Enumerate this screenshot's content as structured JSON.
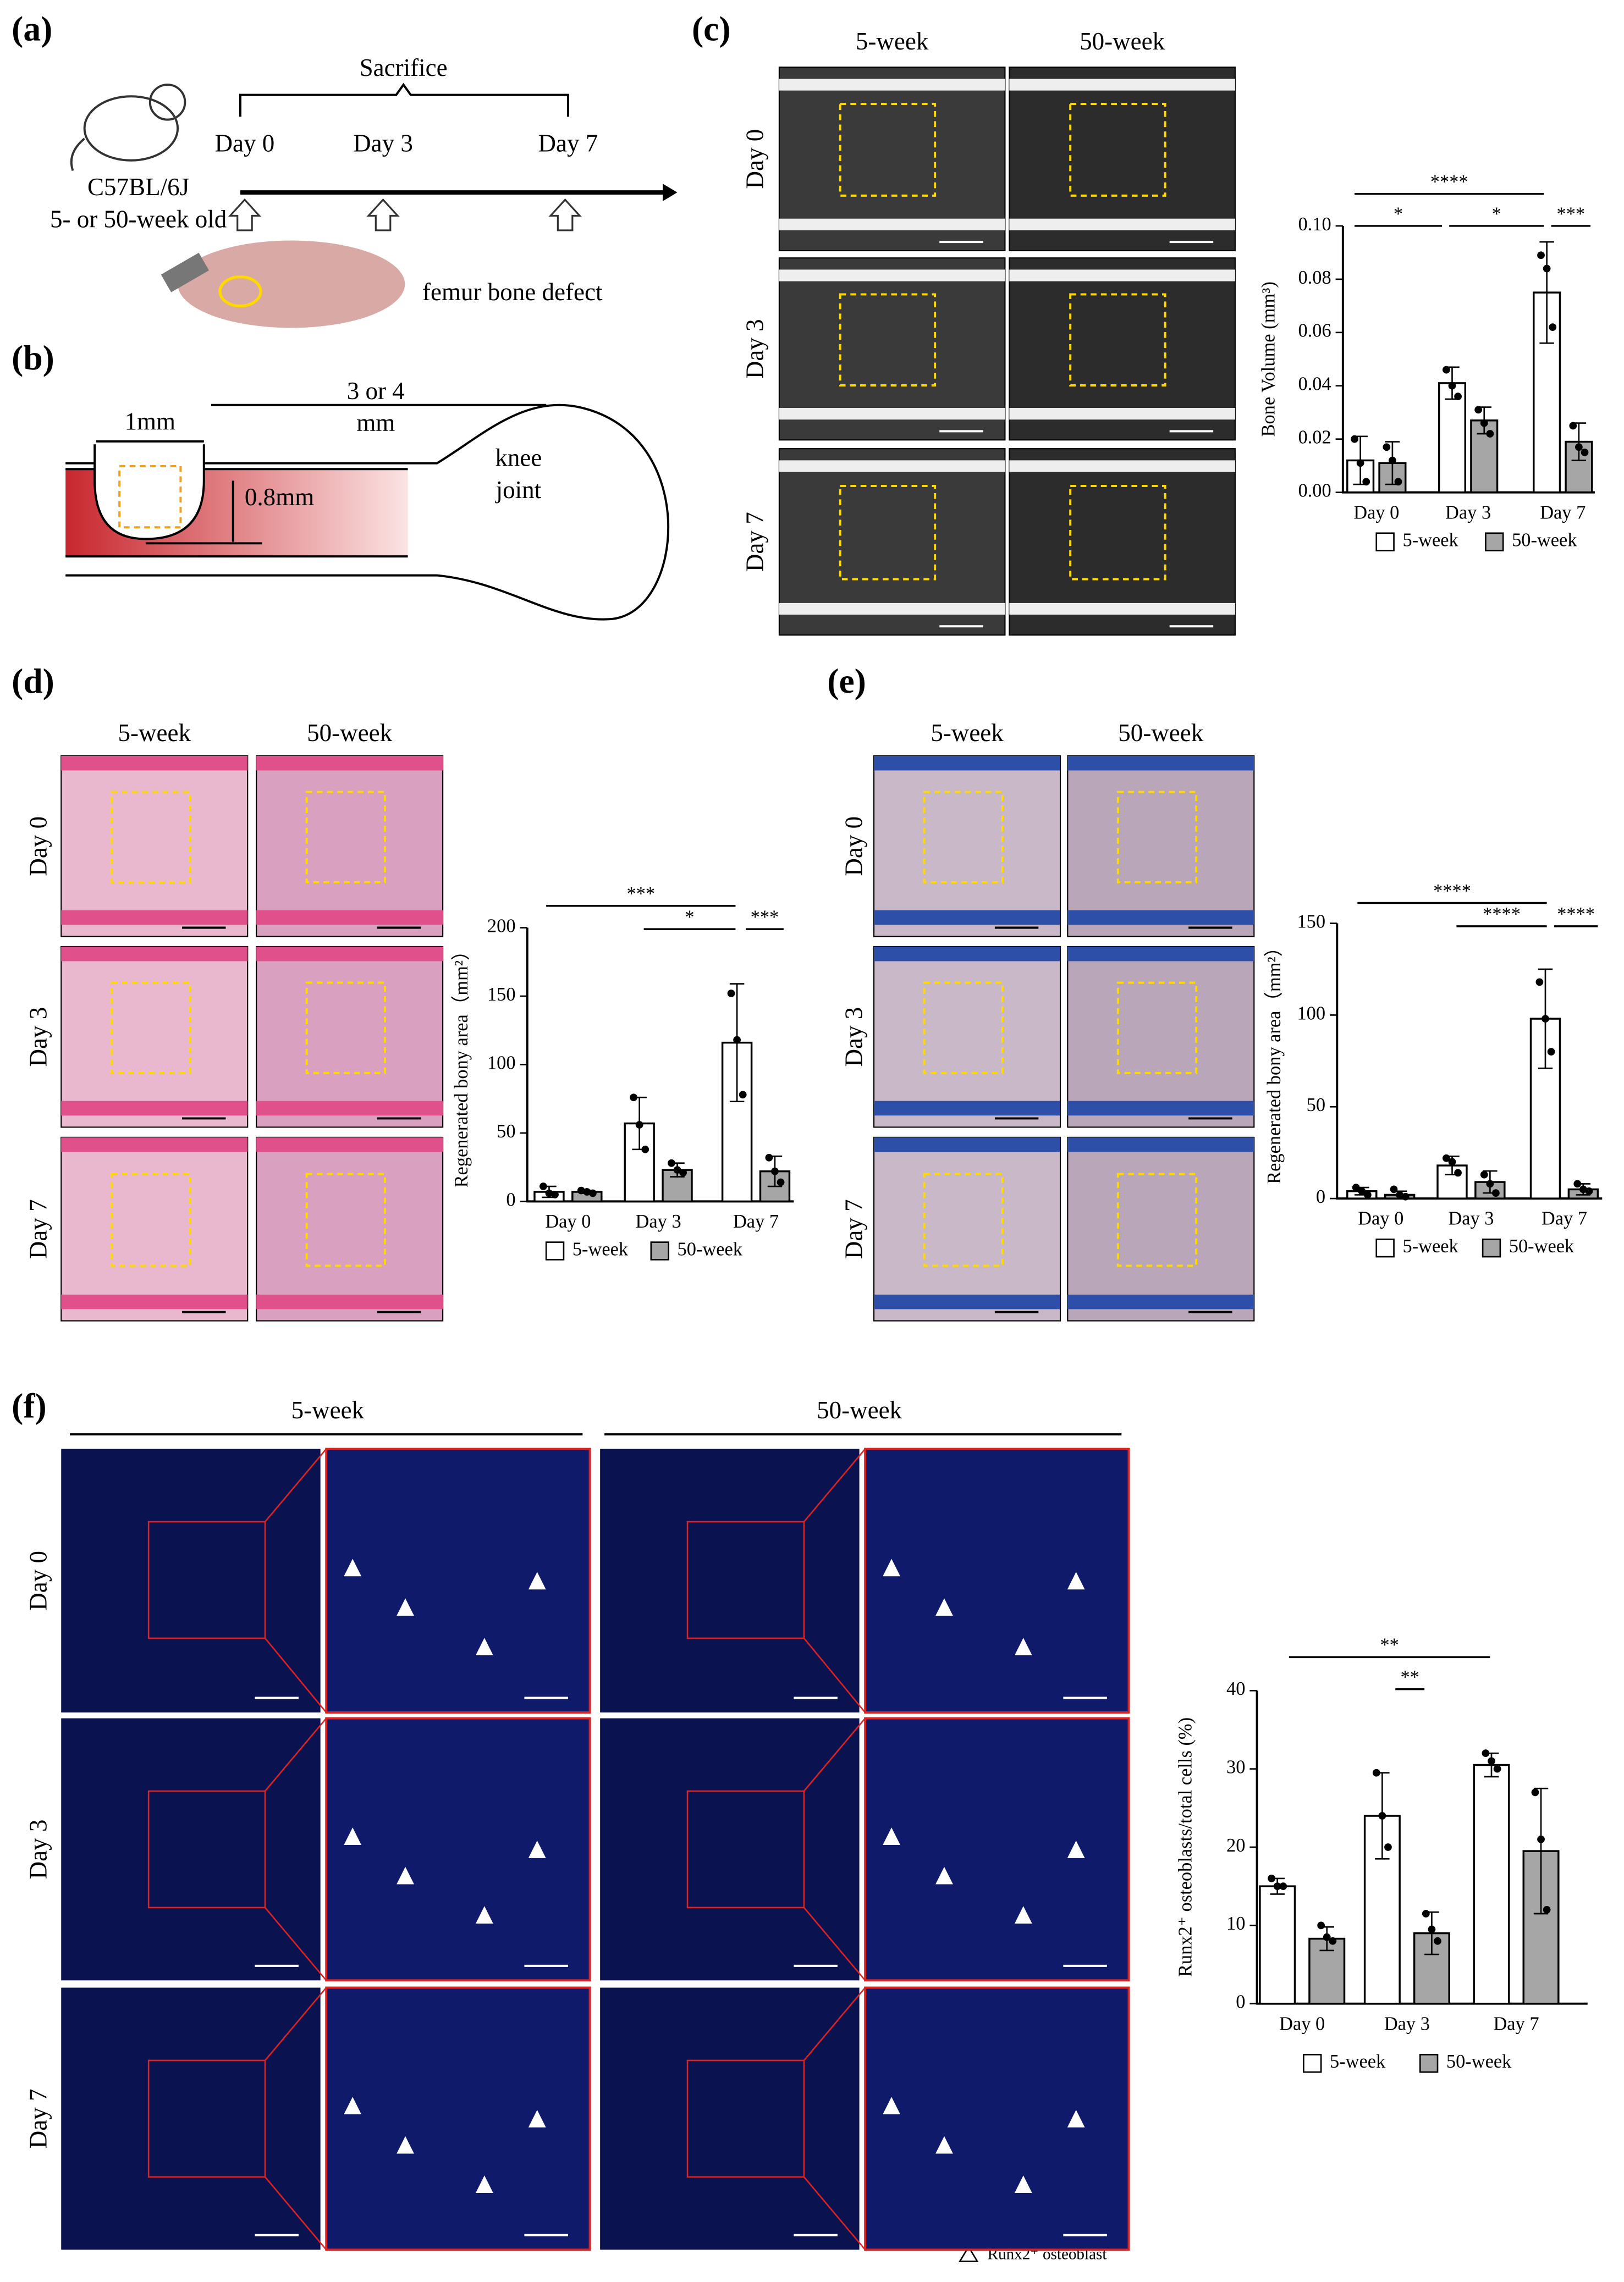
{
  "panels": {
    "a": {
      "label": "(a)",
      "sacrifice": "Sacrifice",
      "days": [
        "Day 0",
        "Day 3",
        "Day 7"
      ],
      "strain": "C57BL/6J",
      "age": "5- or 50-week old",
      "defect": "femur bone defect"
    },
    "b": {
      "label": "(b)",
      "distance": "3 or 4",
      "distance_unit": "mm",
      "width": "1mm",
      "depth": "0.8mm",
      "knee": "knee",
      "joint": "joint"
    },
    "c": {
      "label": "(c)",
      "columns": [
        "5-week",
        "50-week"
      ],
      "rows": [
        "Day 0",
        "Day 3",
        "Day 7"
      ]
    },
    "d": {
      "label": "(d)",
      "columns": [
        "5-week",
        "50-week"
      ],
      "rows": [
        "Day 0",
        "Day 3",
        "Day 7"
      ]
    },
    "e": {
      "label": "(e)",
      "columns": [
        "5-week",
        "50-week"
      ],
      "rows": [
        "Day 0",
        "Day 3",
        "Day 7"
      ]
    },
    "f": {
      "label": "(f)",
      "columns": [
        "5-week",
        "50-week"
      ],
      "rows": [
        "Day 0",
        "Day 3",
        "Day 7"
      ],
      "marker_legend": "Runx2⁺ osteoblast"
    }
  },
  "chart_data": [
    {
      "type": "bar",
      "y_label": "Bone Volume (mm³)",
      "categories": [
        "Day 0",
        "Day 3",
        "Day 7"
      ],
      "series": [
        {
          "name": "5-week",
          "color": "#ffffff",
          "values": [
            0.012,
            0.041,
            0.075
          ],
          "errors": [
            0.009,
            0.006,
            0.019
          ],
          "points": [
            [
              0.02,
              0.011,
              0.004
            ],
            [
              0.046,
              0.04,
              0.036
            ],
            [
              0.089,
              0.084,
              0.062
            ]
          ]
        },
        {
          "name": "50-week",
          "color": "#a6a6a6",
          "values": [
            0.011,
            0.027,
            0.019
          ],
          "errors": [
            0.008,
            0.005,
            0.007
          ],
          "points": [
            [
              0.017,
              0.012,
              0.004
            ],
            [
              0.031,
              0.026,
              0.022
            ],
            [
              0.025,
              0.017,
              0.015
            ]
          ]
        }
      ],
      "ylim": [
        0,
        0.1
      ],
      "yticks": [
        {
          "value": 0,
          "label": "0.00"
        },
        0.02,
        0.04,
        0.06,
        0.08,
        {
          "value": 0.1,
          "label": "0.10"
        }
      ],
      "annotations": [
        {
          "text": "*"
        },
        {
          "text": "*"
        },
        {
          "text": "****"
        },
        {
          "text": "***"
        }
      ]
    },
    {
      "type": "bar",
      "y_label": "Regenerated bony area（mm²）",
      "categories": [
        "Day 0",
        "Day 3",
        "Day 7"
      ],
      "series": [
        {
          "name": "5-week",
          "color": "#ffffff",
          "values": [
            7,
            57,
            116
          ],
          "errors": [
            4,
            19,
            43
          ],
          "points": [
            [
              11,
              6,
              5
            ],
            [
              76,
              56,
              38
            ],
            [
              152,
              118,
              78
            ]
          ]
        },
        {
          "name": "50-week",
          "color": "#a6a6a6",
          "values": [
            7,
            23,
            22
          ],
          "errors": [
            1,
            5,
            11
          ],
          "points": [
            [
              8,
              7,
              6
            ],
            [
              28,
              23,
              21
            ],
            [
              32,
              22,
              14
            ]
          ]
        }
      ],
      "ylim": [
        0,
        200
      ],
      "yticks": [
        0,
        50,
        100,
        150,
        200
      ],
      "annotations": [
        {
          "text": "***"
        },
        {
          "text": "*"
        },
        {
          "text": "***"
        }
      ]
    },
    {
      "type": "bar",
      "y_label": "Regenerated bony area（mm²）",
      "categories": [
        "Day 0",
        "Day 3",
        "Day 7"
      ],
      "series": [
        {
          "name": "5-week",
          "color": "#ffffff",
          "values": [
            4,
            18,
            98
          ],
          "errors": [
            2,
            5,
            27
          ],
          "points": [
            [
              6,
              4,
              2
            ],
            [
              22,
              20,
              14
            ],
            [
              118,
              98,
              80
            ]
          ]
        },
        {
          "name": "50-week",
          "color": "#a6a6a6",
          "values": [
            2,
            9,
            5
          ],
          "errors": [
            2,
            6,
            3
          ],
          "points": [
            [
              5,
              2,
              1
            ],
            [
              13,
              8,
              3
            ],
            [
              8,
              5,
              4
            ]
          ]
        }
      ],
      "ylim": [
        0,
        150
      ],
      "yticks": [
        0,
        50,
        100,
        150
      ],
      "annotations": [
        {
          "text": "****"
        },
        {
          "text": "****"
        },
        {
          "text": "****"
        }
      ]
    },
    {
      "type": "bar",
      "y_label": "Runx2⁺ osteoblasts/total cells (%)",
      "categories": [
        "Day 0",
        "Day 3",
        "Day 7"
      ],
      "series": [
        {
          "name": "5-week",
          "color": "#ffffff",
          "values": [
            15,
            24,
            30.5
          ],
          "errors": [
            1,
            5.5,
            1.5
          ],
          "points": [
            [
              16,
              15,
              15
            ],
            [
              29.5,
              24,
              20
            ],
            [
              32,
              31,
              30
            ]
          ]
        },
        {
          "name": "50-week",
          "color": "#a6a6a6",
          "values": [
            8.3,
            9,
            19.5
          ],
          "errors": [
            1.5,
            2.7,
            8
          ],
          "points": [
            [
              10,
              8.5,
              8
            ],
            [
              11.5,
              9.5,
              8
            ],
            [
              27,
              21,
              12
            ]
          ]
        }
      ],
      "ylim": [
        0,
        40
      ],
      "yticks": [
        0,
        10,
        20,
        30,
        40
      ],
      "annotations": [
        {
          "text": "**"
        },
        {
          "text": "**"
        }
      ]
    }
  ]
}
